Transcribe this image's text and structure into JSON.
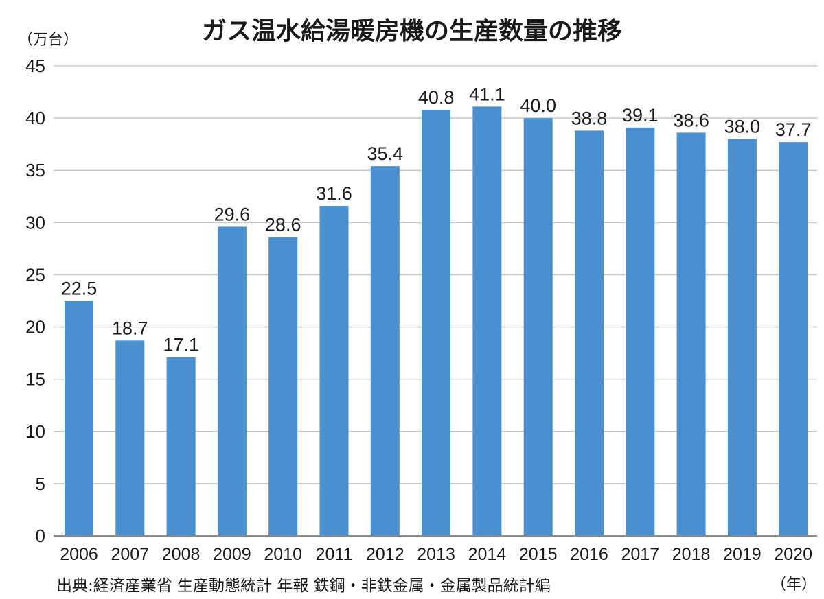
{
  "chart_data": {
    "type": "bar",
    "title": "ガス温水給湯暖房機の生産数量の推移",
    "ylabel": "（万台）",
    "xlabel": "（年）",
    "source": "出典:経済産業省 生産動態統計 年報 鉄鋼・非鉄金属・金属製品統計編",
    "categories": [
      "2006",
      "2007",
      "2008",
      "2009",
      "2010",
      "2011",
      "2012",
      "2013",
      "2014",
      "2015",
      "2016",
      "2017",
      "2018",
      "2019",
      "2020"
    ],
    "values": [
      22.5,
      18.7,
      17.1,
      29.6,
      28.6,
      31.6,
      35.4,
      40.8,
      41.1,
      40.0,
      38.8,
      39.1,
      38.6,
      38.0,
      37.7
    ],
    "value_labels": [
      "22.5",
      "18.7",
      "17.1",
      "29.6",
      "28.6",
      "31.6",
      "35.4",
      "40.8",
      "41.1",
      "40.0",
      "38.8",
      "39.1",
      "38.6",
      "38.0",
      "37.7"
    ],
    "yticks": [
      "0",
      "5",
      "10",
      "15",
      "20",
      "25",
      "30",
      "35",
      "40",
      "45"
    ],
    "ylim": [
      0,
      45
    ],
    "ystep": 5,
    "grid": true,
    "bar_color": "#4a90d0"
  }
}
